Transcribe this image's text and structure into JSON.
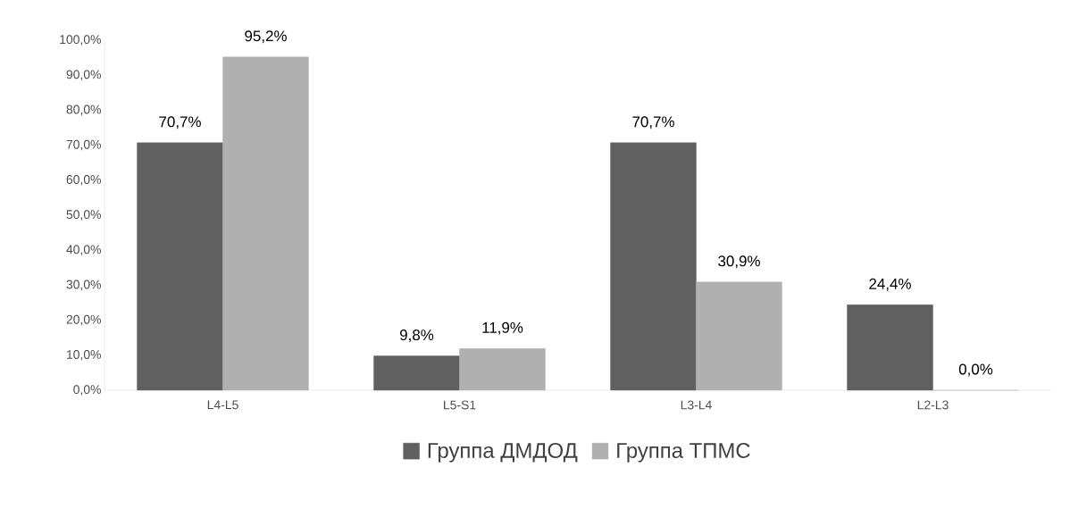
{
  "chart_data": {
    "type": "bar",
    "categories": [
      "L4-L5",
      "L5-S1",
      "L3-L4",
      "L2-L3"
    ],
    "series": [
      {
        "name": "Группа ДМДОД",
        "color": "#606060",
        "values": [
          70.7,
          9.8,
          70.7,
          24.4
        ],
        "value_labels": [
          "70,7%",
          "9,8%",
          "70,7%",
          "24,4%"
        ]
      },
      {
        "name": "Группа ТПМС",
        "color": "#b0b0b0",
        "values": [
          95.2,
          11.9,
          30.9,
          0.0
        ],
        "value_labels": [
          "95,2%",
          "11,9%",
          "30,9%",
          "0,0%"
        ]
      }
    ],
    "ylim": [
      0,
      100
    ],
    "yticks": [
      {
        "value": 0,
        "label": "0,0%"
      },
      {
        "value": 10,
        "label": "10,0%"
      },
      {
        "value": 20,
        "label": "20,0%"
      },
      {
        "value": 30,
        "label": "30,0%"
      },
      {
        "value": 40,
        "label": "40,0%"
      },
      {
        "value": 50,
        "label": "50,0%"
      },
      {
        "value": 60,
        "label": "60,0%"
      },
      {
        "value": 70,
        "label": "70,0%"
      },
      {
        "value": 80,
        "label": "80,0%"
      },
      {
        "value": 90,
        "label": "90,0%"
      },
      {
        "value": 100,
        "label": "100,0%"
      }
    ],
    "grid": false,
    "legend": "bottom"
  }
}
